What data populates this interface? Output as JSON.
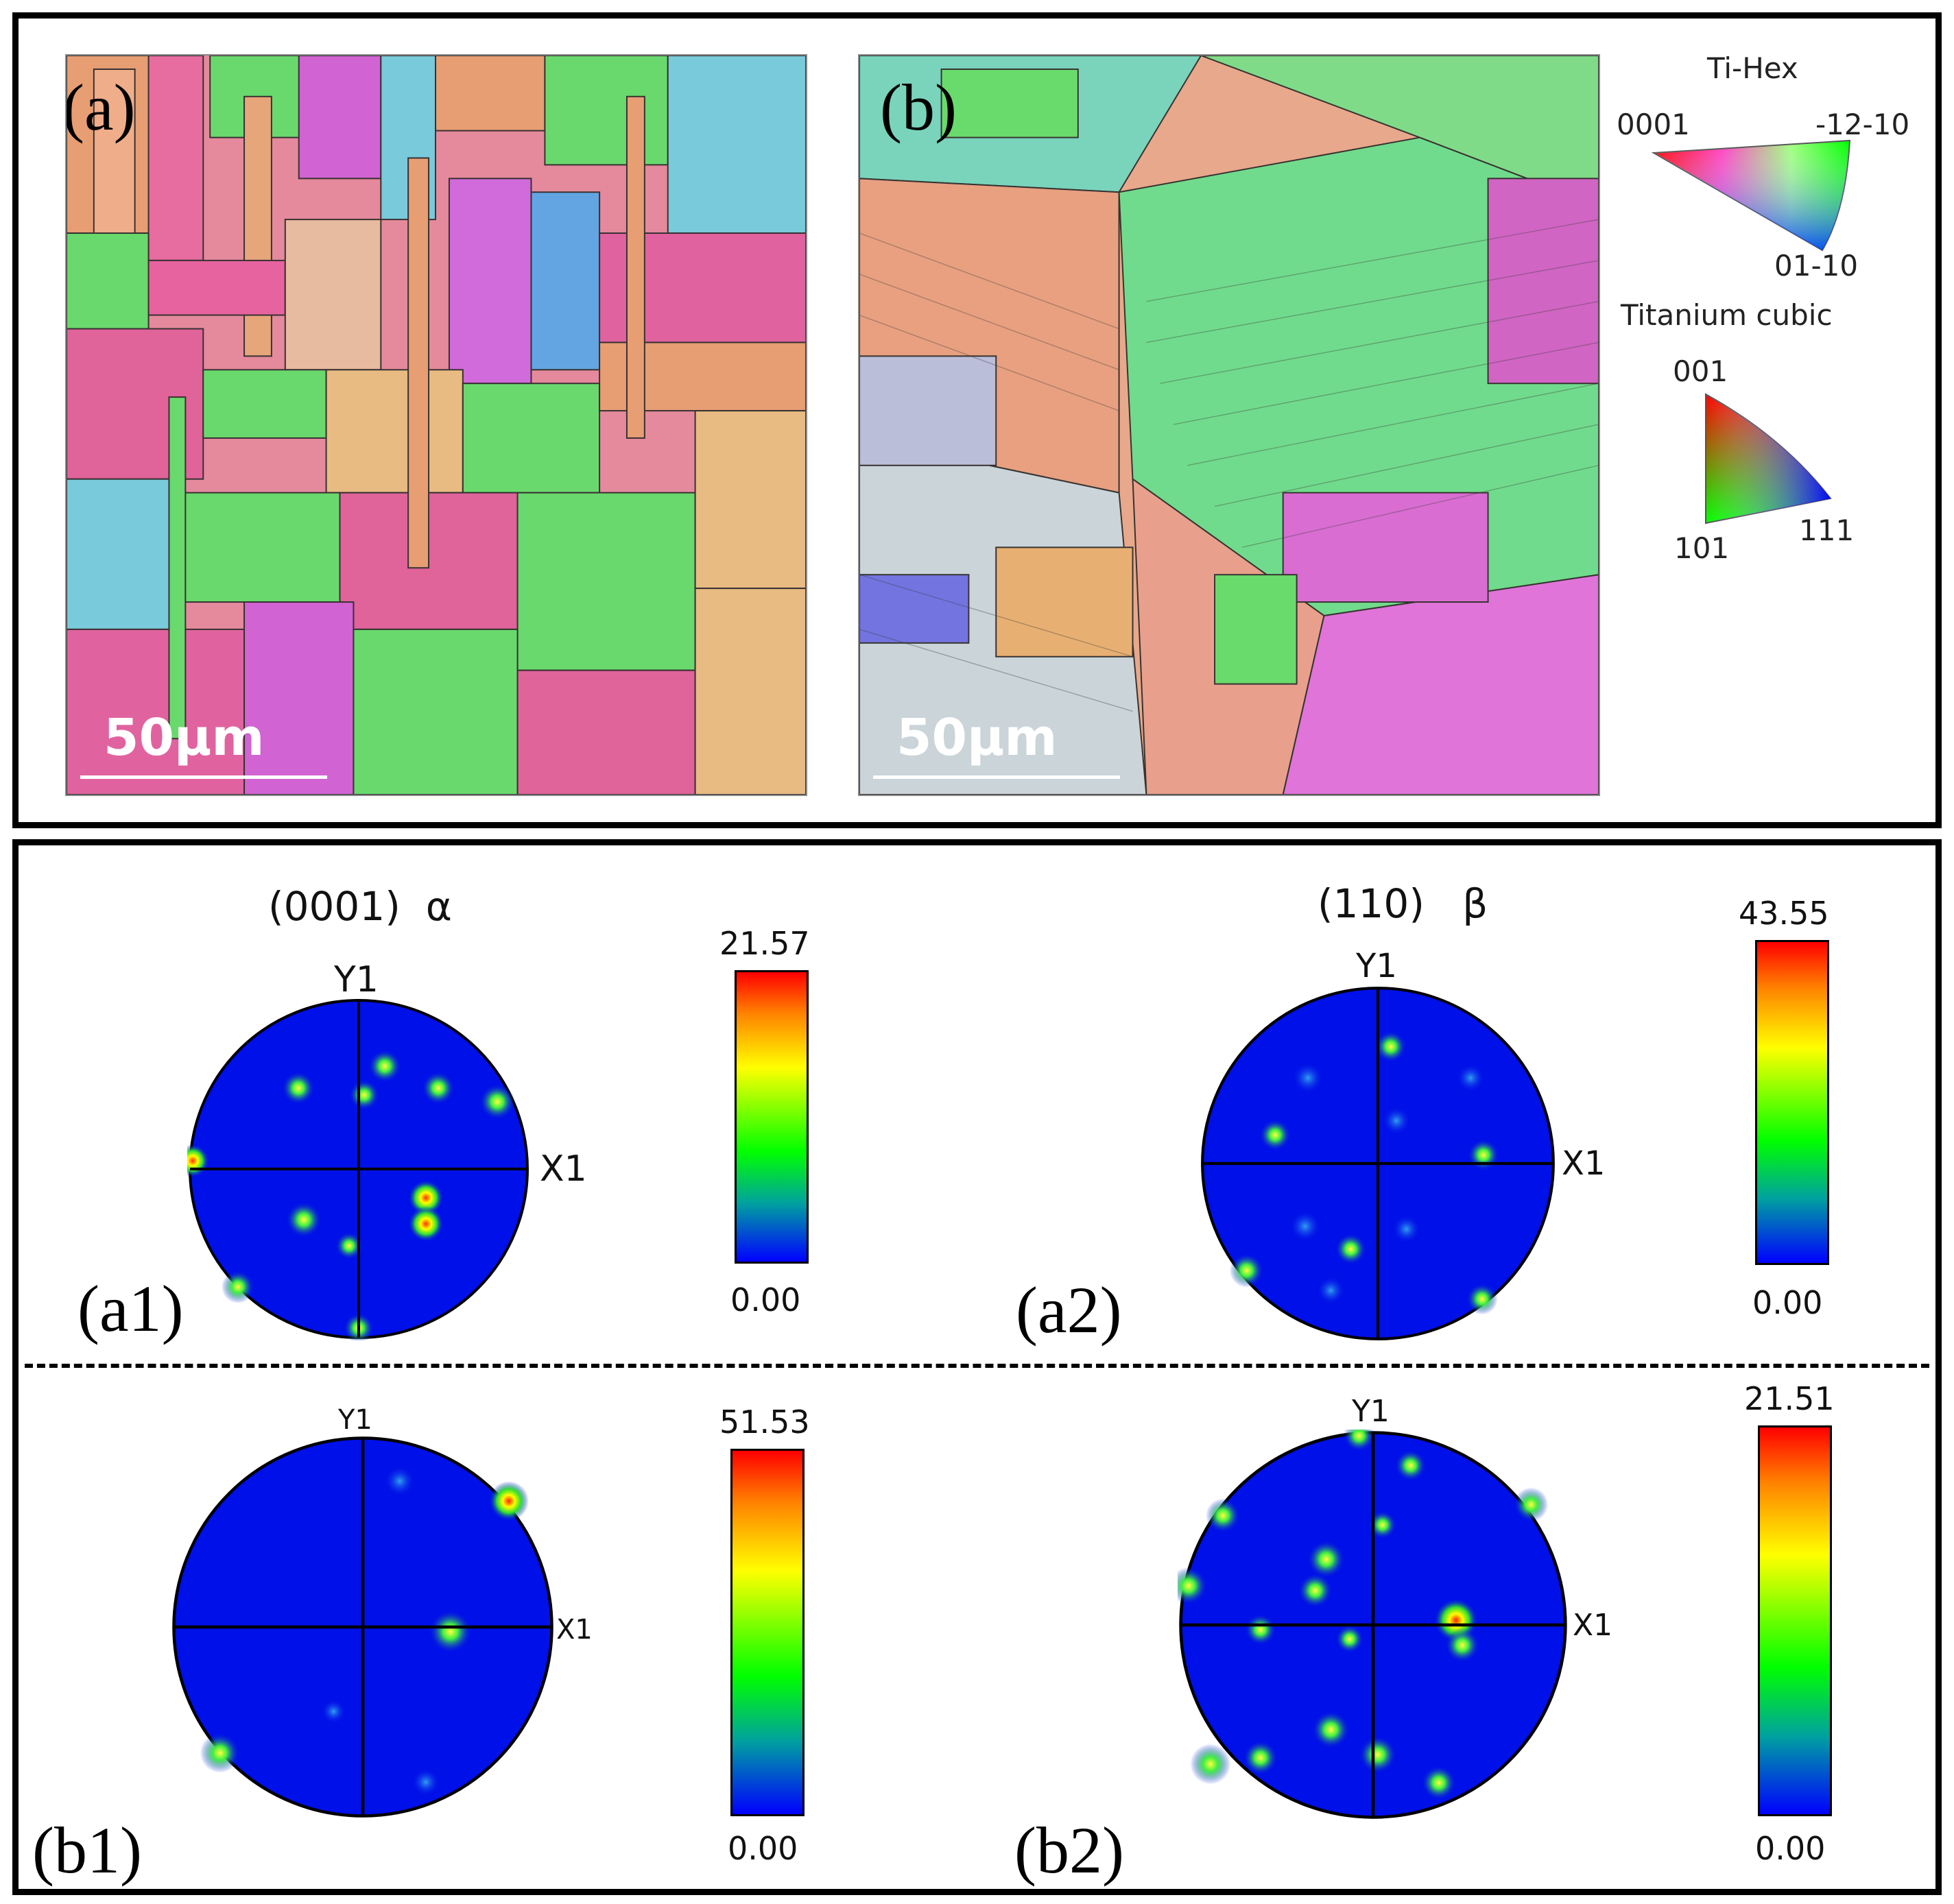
{
  "top_panel": {
    "map_a": {
      "label": "(a)",
      "scale_text": "50μm"
    },
    "map_b": {
      "label": "(b)",
      "scale_text": "50μm"
    },
    "legend": {
      "hex_title": "Ti-Hex",
      "hex_corner_left": "0001",
      "hex_corner_right": "-12-10",
      "hex_corner_bottom": "01-10",
      "cubic_title": "Titanium cubic",
      "cubic_corner_top": "001",
      "cubic_corner_left": "101",
      "cubic_corner_right": "111"
    }
  },
  "bottom_panel": {
    "pole_figures": [
      {
        "id": "a1",
        "panel_label": "(a1)",
        "title": "(0001)  α",
        "axis_y": "Y1",
        "axis_x": "X1",
        "colorbar_max": "21.57",
        "colorbar_min": "0.00"
      },
      {
        "id": "a2",
        "panel_label": "(a2)",
        "title": "(110)   β",
        "axis_y": "Y1",
        "axis_x": "X1",
        "colorbar_max": "43.55",
        "colorbar_min": "0.00"
      },
      {
        "id": "b1",
        "panel_label": "(b1)",
        "title": "",
        "axis_y": "Y1",
        "axis_x": "X1",
        "colorbar_max": "51.53",
        "colorbar_min": "0.00"
      },
      {
        "id": "b2",
        "panel_label": "(b2)",
        "title": "",
        "axis_y": "Y1",
        "axis_x": "X1",
        "colorbar_max": "21.51",
        "colorbar_min": "0.00"
      }
    ]
  },
  "colors": {
    "ipf_pink": "#e0609a",
    "ipf_green": "#5fe06a",
    "ipf_salmon": "#e8a070",
    "ipf_magenta": "#d060d8",
    "ipf_cyan": "#70d0e0",
    "ipf_tan": "#e8c080",
    "pole_background": "#0010e8",
    "pole_spot": "#30e030"
  }
}
